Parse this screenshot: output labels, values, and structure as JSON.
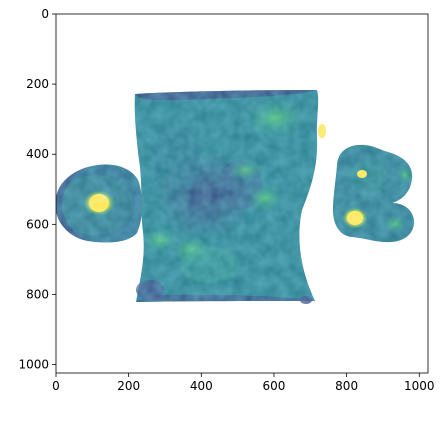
{
  "image": {
    "type": "heatmap",
    "colormap": "viridis",
    "colormap_colors": [
      "#440154",
      "#3b528b",
      "#21918c",
      "#5ec962",
      "#fde725"
    ],
    "x_ticks": [
      "0",
      "200",
      "400",
      "600",
      "800",
      "1000"
    ],
    "y_ticks": [
      "0",
      "200",
      "400",
      "600",
      "800",
      "1000"
    ],
    "xlim": [
      0,
      1024
    ],
    "ylim": [
      1024,
      0
    ],
    "grid": false
  }
}
